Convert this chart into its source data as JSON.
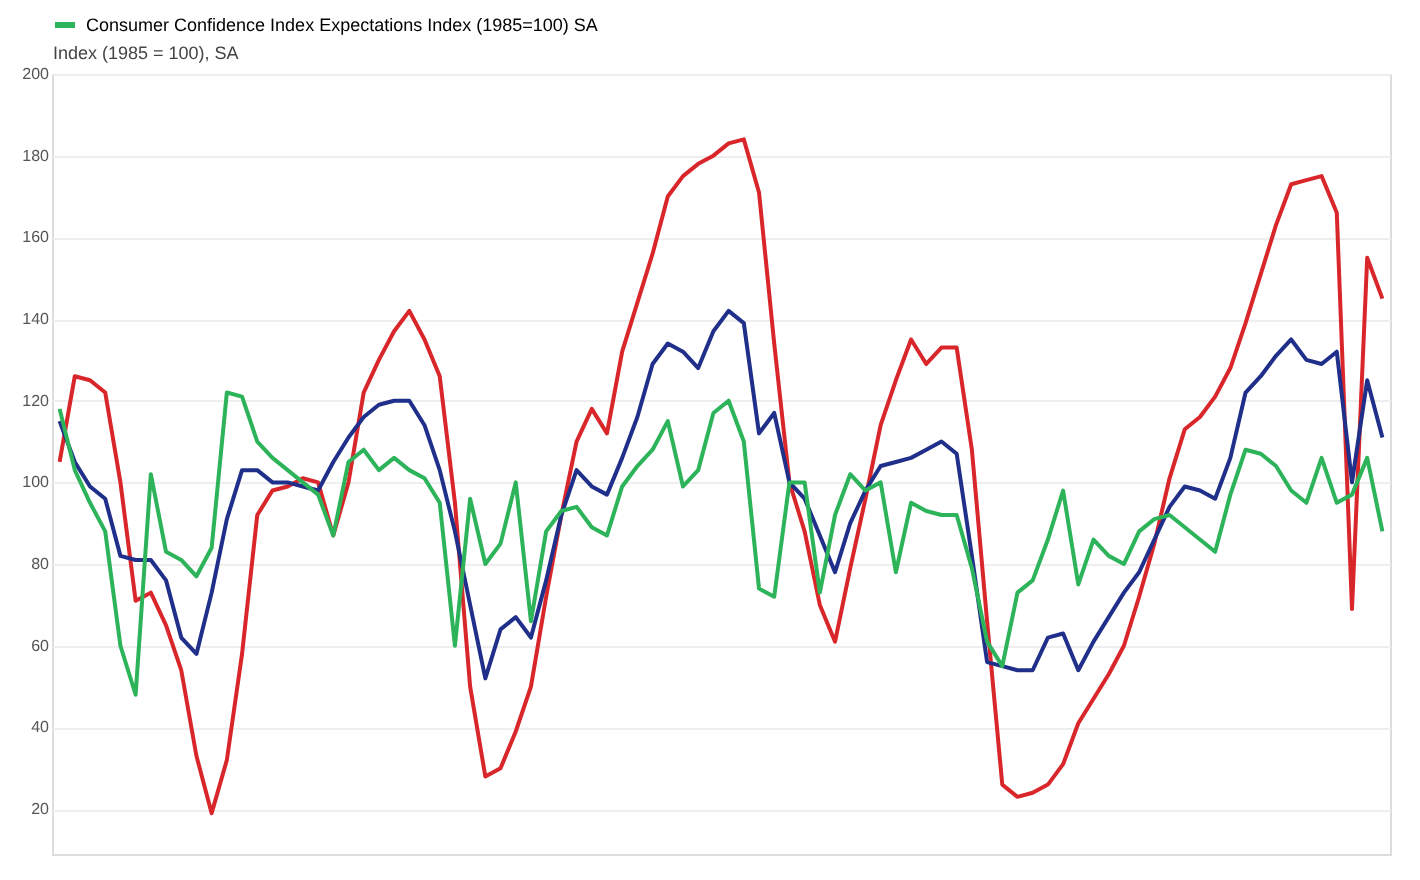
{
  "chart_data": {
    "type": "line",
    "ylabel": "Index (1985 = 100), SA",
    "categories": [
      null,
      null,
      null,
      null,
      null,
      null,
      null,
      null,
      null,
      null,
      null,
      null,
      null,
      null,
      null,
      null,
      null,
      null,
      null,
      null,
      null,
      null,
      null,
      null,
      null,
      null,
      null,
      null,
      null,
      null,
      null,
      null,
      null,
      null,
      null,
      null,
      null,
      null,
      null,
      null,
      null,
      null,
      null,
      null,
      null,
      null,
      null,
      null,
      null,
      null,
      null,
      null,
      null,
      null,
      null,
      null,
      null,
      null,
      null,
      null,
      null,
      null,
      null,
      null,
      null,
      null,
      null,
      null,
      null,
      null,
      null,
      null,
      null,
      null,
      null,
      null,
      null,
      null,
      null,
      null,
      null,
      null,
      null,
      null,
      null,
      null,
      null,
      null
    ],
    "ylim": [
      9,
      200
    ],
    "yticks": [
      20,
      40,
      60,
      80,
      100,
      120,
      140,
      160,
      180,
      200
    ],
    "tick_labels": "y",
    "grid": "y",
    "legend": "top",
    "line_style": "solid",
    "marker": "none",
    "series": [
      {
        "color": "#d9262a",
        "values": [
          105,
          126,
          125,
          122,
          100,
          71,
          73,
          65,
          54,
          33,
          19,
          32,
          58,
          92,
          98,
          99,
          101,
          100,
          87,
          100,
          122,
          130,
          137,
          142,
          135,
          126,
          95,
          50,
          28,
          30,
          39,
          50,
          72,
          92,
          110,
          118,
          112,
          132,
          144,
          156,
          170,
          175,
          178,
          180,
          183,
          184,
          171,
          134,
          100,
          88,
          70,
          61,
          79,
          96,
          114,
          125,
          135,
          129,
          133,
          133,
          108,
          66,
          26,
          23,
          24,
          26,
          31,
          41,
          47,
          53,
          60,
          72,
          85,
          101,
          113,
          116,
          121,
          128,
          139,
          151,
          163,
          173,
          174,
          175,
          166,
          69,
          155,
          145
        ]
      },
      {
        "color": "#1f2f8a",
        "values": [
          115,
          105,
          99,
          96,
          82,
          81,
          81,
          76,
          62,
          58,
          73,
          91,
          103,
          103,
          100,
          100,
          99,
          98,
          105,
          111,
          116,
          119,
          120,
          120,
          114,
          103,
          88,
          70,
          52,
          64,
          67,
          62,
          76,
          92,
          103,
          99,
          97,
          106,
          116,
          129,
          134,
          132,
          128,
          137,
          142,
          139,
          112,
          117,
          100,
          96,
          87,
          78,
          90,
          98,
          104,
          105,
          106,
          108,
          110,
          107,
          82,
          56,
          55,
          54,
          54,
          62,
          63,
          54,
          61,
          67,
          73,
          78,
          86,
          94,
          99,
          98,
          96,
          106,
          122,
          126,
          131,
          135,
          130,
          129,
          132,
          100,
          125,
          111
        ]
      },
      {
        "name": "Consumer Confidence Index Expectations Index (1985=100) SA",
        "color": "#2db35a",
        "values": [
          118,
          103,
          95,
          88,
          60,
          48,
          102,
          83,
          81,
          77,
          84,
          122,
          121,
          110,
          106,
          103,
          100,
          97,
          87,
          105,
          108,
          103,
          106,
          103,
          101,
          95,
          60,
          96,
          80,
          85,
          100,
          66,
          88,
          93,
          94,
          89,
          87,
          99,
          104,
          108,
          115,
          99,
          103,
          117,
          120,
          110,
          74,
          72,
          100,
          100,
          73,
          92,
          102,
          98,
          100,
          78,
          95,
          93,
          92,
          92,
          79,
          61,
          55,
          73,
          76,
          86,
          98,
          75,
          86,
          82,
          80,
          88,
          91,
          92,
          89,
          86,
          83,
          97,
          108,
          107,
          104,
          98,
          95,
          106,
          95,
          97,
          106,
          88
        ]
      }
    ]
  }
}
